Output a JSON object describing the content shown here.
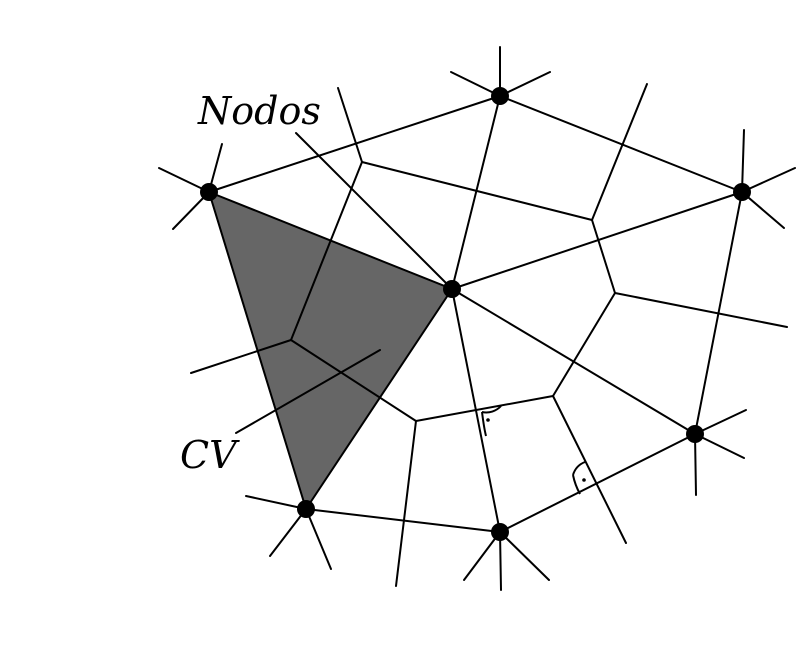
{
  "labels": {
    "nodes": "Nodos",
    "control_volume": "CV"
  },
  "colors": {
    "cv_fill": "#666666",
    "line": "#000000",
    "background": "#ffffff"
  }
}
